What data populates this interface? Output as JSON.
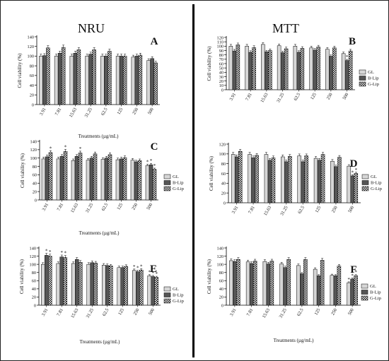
{
  "headers": {
    "left": "NRU",
    "right": "MTT"
  },
  "legend_labels": [
    "GL",
    "B-Lip",
    "G-Lip"
  ],
  "colors": {
    "GL": "#d6d6d6",
    "B-Lip": "#555555",
    "G-Lip": "pattern-checker"
  },
  "chart_data": [
    {
      "type": "bar",
      "panel": "A",
      "categories": [
        "3.91",
        "7.81",
        "15.63",
        "31.25",
        "62.5",
        "125",
        "250",
        "500"
      ],
      "ylabel": "Cell viability (%)",
      "xlabel": "Treatments (µg/mL)",
      "ylim": [
        0,
        140
      ],
      "yticks": [
        0,
        20,
        40,
        60,
        80,
        100,
        120,
        140
      ],
      "legend_labels": [],
      "series": [
        {
          "name": "GL",
          "values": [
            100,
            100,
            100,
            100,
            100,
            100,
            98,
            91
          ]
        },
        {
          "name": "B-Lip",
          "values": [
            101,
            106,
            106,
            104,
            100,
            100,
            100,
            95
          ]
        },
        {
          "name": "G-Lip",
          "values": [
            117,
            118,
            113,
            113,
            110,
            100,
            102,
            86
          ]
        }
      ],
      "asterisks": []
    },
    {
      "type": "bar",
      "panel": "B",
      "categories": [
        "3.91",
        "7.81",
        "15.63",
        "31.25",
        "62.5",
        "125",
        "250",
        "500"
      ],
      "ylabel": "Cell viability (%)",
      "xlabel": "",
      "ylim": [
        0,
        120
      ],
      "yticks": [
        0,
        10,
        20,
        30,
        40,
        50,
        60,
        70,
        80,
        90,
        100,
        110,
        120
      ],
      "legend_labels": [
        "GL",
        "B-Lip",
        "G-Lip"
      ],
      "series": [
        {
          "name": "GL",
          "values": [
            100,
            100,
            104,
            101,
            100,
            96,
            93,
            83
          ]
        },
        {
          "name": "B-Lip",
          "values": [
            89,
            86,
            87,
            85,
            86,
            91,
            77,
            67
          ]
        },
        {
          "name": "G-Lip",
          "values": [
            103,
            97,
            90,
            94,
            95,
            98,
            96,
            89
          ]
        }
      ],
      "asterisks": [
        [
          "500",
          "B-Lip"
        ]
      ]
    },
    {
      "type": "bar",
      "panel": "C",
      "categories": [
        "3.91",
        "7.81",
        "15.63",
        "31.25",
        "62.5",
        "125",
        "250",
        "500"
      ],
      "ylabel": "Cell viability (%)",
      "xlabel": "Treatments (µg/mL)",
      "ylim": [
        0,
        140
      ],
      "yticks": [
        0,
        20,
        40,
        60,
        80,
        100,
        120,
        140
      ],
      "legend_labels": [
        "GL",
        "B-Lip",
        "G-Lip"
      ],
      "series": [
        {
          "name": "GL",
          "values": [
            98,
            98,
            94,
            95,
            97,
            96,
            95,
            82
          ]
        },
        {
          "name": "B-Lip",
          "values": [
            103,
            104,
            104,
            100,
            100,
            98,
            91,
            84
          ]
        },
        {
          "name": "G-Lip",
          "values": [
            113,
            116,
            112,
            110,
            108,
            101,
            94,
            73
          ]
        }
      ],
      "asterisks": [
        [
          "3.91",
          "G-Lip"
        ],
        [
          "7.81",
          "G-Lip"
        ],
        [
          "15.63",
          "G-Lip"
        ],
        [
          "500",
          "GL"
        ],
        [
          "500",
          "B-Lip"
        ],
        [
          "500",
          "G-Lip"
        ]
      ]
    },
    {
      "type": "bar",
      "panel": "D",
      "categories": [
        "3.91",
        "7.81",
        "15.63",
        "31.25",
        "62.5",
        "125",
        "250",
        "500"
      ],
      "ylabel": "Cell viability (%)",
      "xlabel": "",
      "ylim": [
        0,
        120
      ],
      "yticks": [
        0,
        20,
        40,
        60,
        80,
        100,
        120
      ],
      "legend_labels": [
        "GL",
        "B-Lip",
        "G-Lip"
      ],
      "series": [
        {
          "name": "GL",
          "values": [
            99,
            99,
            99,
            94,
            96,
            91,
            85,
            75
          ]
        },
        {
          "name": "B-Lip",
          "values": [
            94,
            92,
            87,
            84,
            84,
            87,
            74,
            55
          ]
        },
        {
          "name": "G-Lip",
          "values": [
            105,
            97,
            92,
            95,
            96,
            99,
            93,
            60
          ]
        }
      ],
      "asterisks": [
        [
          "500",
          "B-Lip"
        ],
        [
          "500",
          "G-Lip"
        ]
      ]
    },
    {
      "type": "bar",
      "panel": "E",
      "categories": [
        "3.91",
        "7.81",
        "15.63",
        "31.25",
        "62.5",
        "125",
        "250",
        "500"
      ],
      "ylabel": "Cell viability (%)",
      "xlabel": "Treatments (µg/mL)",
      "ylim": [
        0,
        140
      ],
      "yticks": [
        0,
        20,
        40,
        60,
        80,
        100,
        120,
        140
      ],
      "legend_labels": [
        "GL",
        "B-Lip",
        "G-Lip"
      ],
      "series": [
        {
          "name": "GL",
          "values": [
            100,
            102,
            102,
            100,
            98,
            92,
            85,
            72
          ]
        },
        {
          "name": "B-Lip",
          "values": [
            122,
            118,
            112,
            104,
            97,
            92,
            82,
            70
          ]
        },
        {
          "name": "G-Lip",
          "values": [
            120,
            117,
            105,
            103,
            96,
            95,
            86,
            68
          ]
        }
      ],
      "asterisks": [
        [
          "3.91",
          "B-Lip"
        ],
        [
          "3.91",
          "G-Lip"
        ],
        [
          "7.81",
          "B-Lip"
        ],
        [
          "7.81",
          "G-Lip"
        ],
        [
          "250",
          "GL"
        ],
        [
          "250",
          "B-Lip"
        ],
        [
          "250",
          "G-Lip"
        ],
        [
          "500",
          "GL"
        ],
        [
          "500",
          "B-Lip"
        ],
        [
          "500",
          "G-Lip"
        ]
      ]
    },
    {
      "type": "bar",
      "panel": "F",
      "categories": [
        "3.91",
        "7.81",
        "15.63",
        "31.25",
        "62.5",
        "125",
        "250",
        "500"
      ],
      "ylabel": "Cell viability (%)",
      "xlabel": "Treatments (µg/mL)",
      "ylim": [
        0,
        140
      ],
      "yticks": [
        0,
        20,
        40,
        60,
        80,
        100,
        120,
        140
      ],
      "legend_labels": [
        "GL",
        "B-Lip",
        "G-Lip"
      ],
      "series": [
        {
          "name": "GL",
          "values": [
            109,
            106,
            107,
            101,
            97,
            88,
            73,
            55
          ]
        },
        {
          "name": "B-Lip",
          "values": [
            107,
            102,
            101,
            92,
            77,
            72,
            72,
            64
          ]
        },
        {
          "name": "G-Lip",
          "values": [
            112,
            108,
            108,
            112,
            112,
            110,
            96,
            72
          ]
        }
      ],
      "asterisks": [
        [
          "500",
          "GL"
        ],
        [
          "500",
          "B-Lip"
        ],
        [
          "500",
          "G-Lip"
        ]
      ]
    }
  ]
}
